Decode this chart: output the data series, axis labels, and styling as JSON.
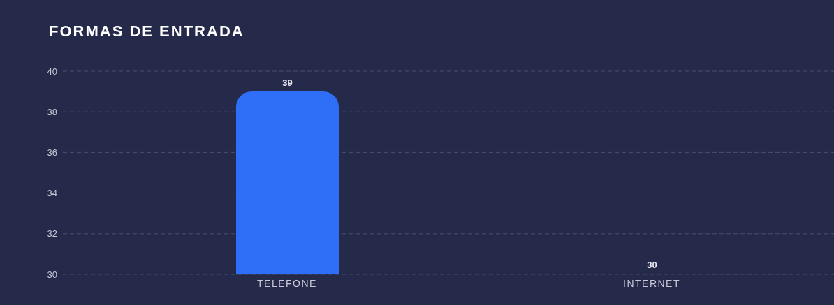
{
  "chart_data": {
    "type": "bar",
    "title": "FORMAS DE ENTRADA",
    "categories": [
      "TELEFONE",
      "INTERNET"
    ],
    "values": [
      39,
      30
    ],
    "color": "#2f6ef7",
    "ylim": [
      30,
      40
    ],
    "yticks": [
      30,
      32,
      34,
      36,
      38,
      40
    ],
    "grid": "y",
    "data_labels": true
  }
}
